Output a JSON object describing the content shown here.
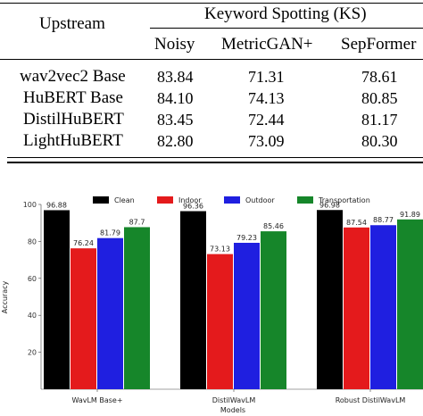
{
  "table": {
    "header_upstream": "Upstream",
    "header_group": "Keyword Spotting (KS)",
    "columns": [
      "Noisy",
      "MetricGAN+",
      "SepFormer"
    ],
    "rows": [
      {
        "model": "wav2vec2 Base",
        "values": [
          "83.84",
          "71.31",
          "78.61"
        ]
      },
      {
        "model": "HuBERT Base",
        "values": [
          "84.10",
          "74.13",
          "80.85"
        ]
      },
      {
        "model": "DistilHuBERT",
        "values": [
          "83.45",
          "72.44",
          "81.17"
        ]
      },
      {
        "model": "LightHuBERT",
        "values": [
          "82.80",
          "73.09",
          "80.30"
        ]
      }
    ]
  },
  "chart_data": {
    "type": "bar",
    "categories": [
      "WavLM Base+",
      "DistilWavLM",
      "Robust DistilWavLM"
    ],
    "xlabel": "Models",
    "ylabel": "Accuracy",
    "ylim": [
      0,
      100
    ],
    "yticks": [
      20,
      40,
      60,
      80,
      100
    ],
    "legend_position": "top",
    "grid": false,
    "series": [
      {
        "name": "Clean",
        "color": "#000000",
        "values": [
          96.88,
          96.36,
          96.98
        ],
        "labels": [
          "96.88",
          "96.36",
          "96.98"
        ]
      },
      {
        "name": "Indoor",
        "color": "#e41a1c",
        "values": [
          76.24,
          73.13,
          87.54
        ],
        "labels": [
          "76.24",
          "73.13",
          "87.54"
        ]
      },
      {
        "name": "Outdoor",
        "color": "#1f1fe0",
        "values": [
          81.79,
          79.23,
          88.77
        ],
        "labels": [
          "81.79",
          "79.23",
          "88.77"
        ]
      },
      {
        "name": "Transportation",
        "color": "#16862a",
        "values": [
          87.7,
          85.46,
          91.89
        ],
        "labels": [
          "87.7",
          "85.46",
          "91.89"
        ]
      }
    ]
  }
}
